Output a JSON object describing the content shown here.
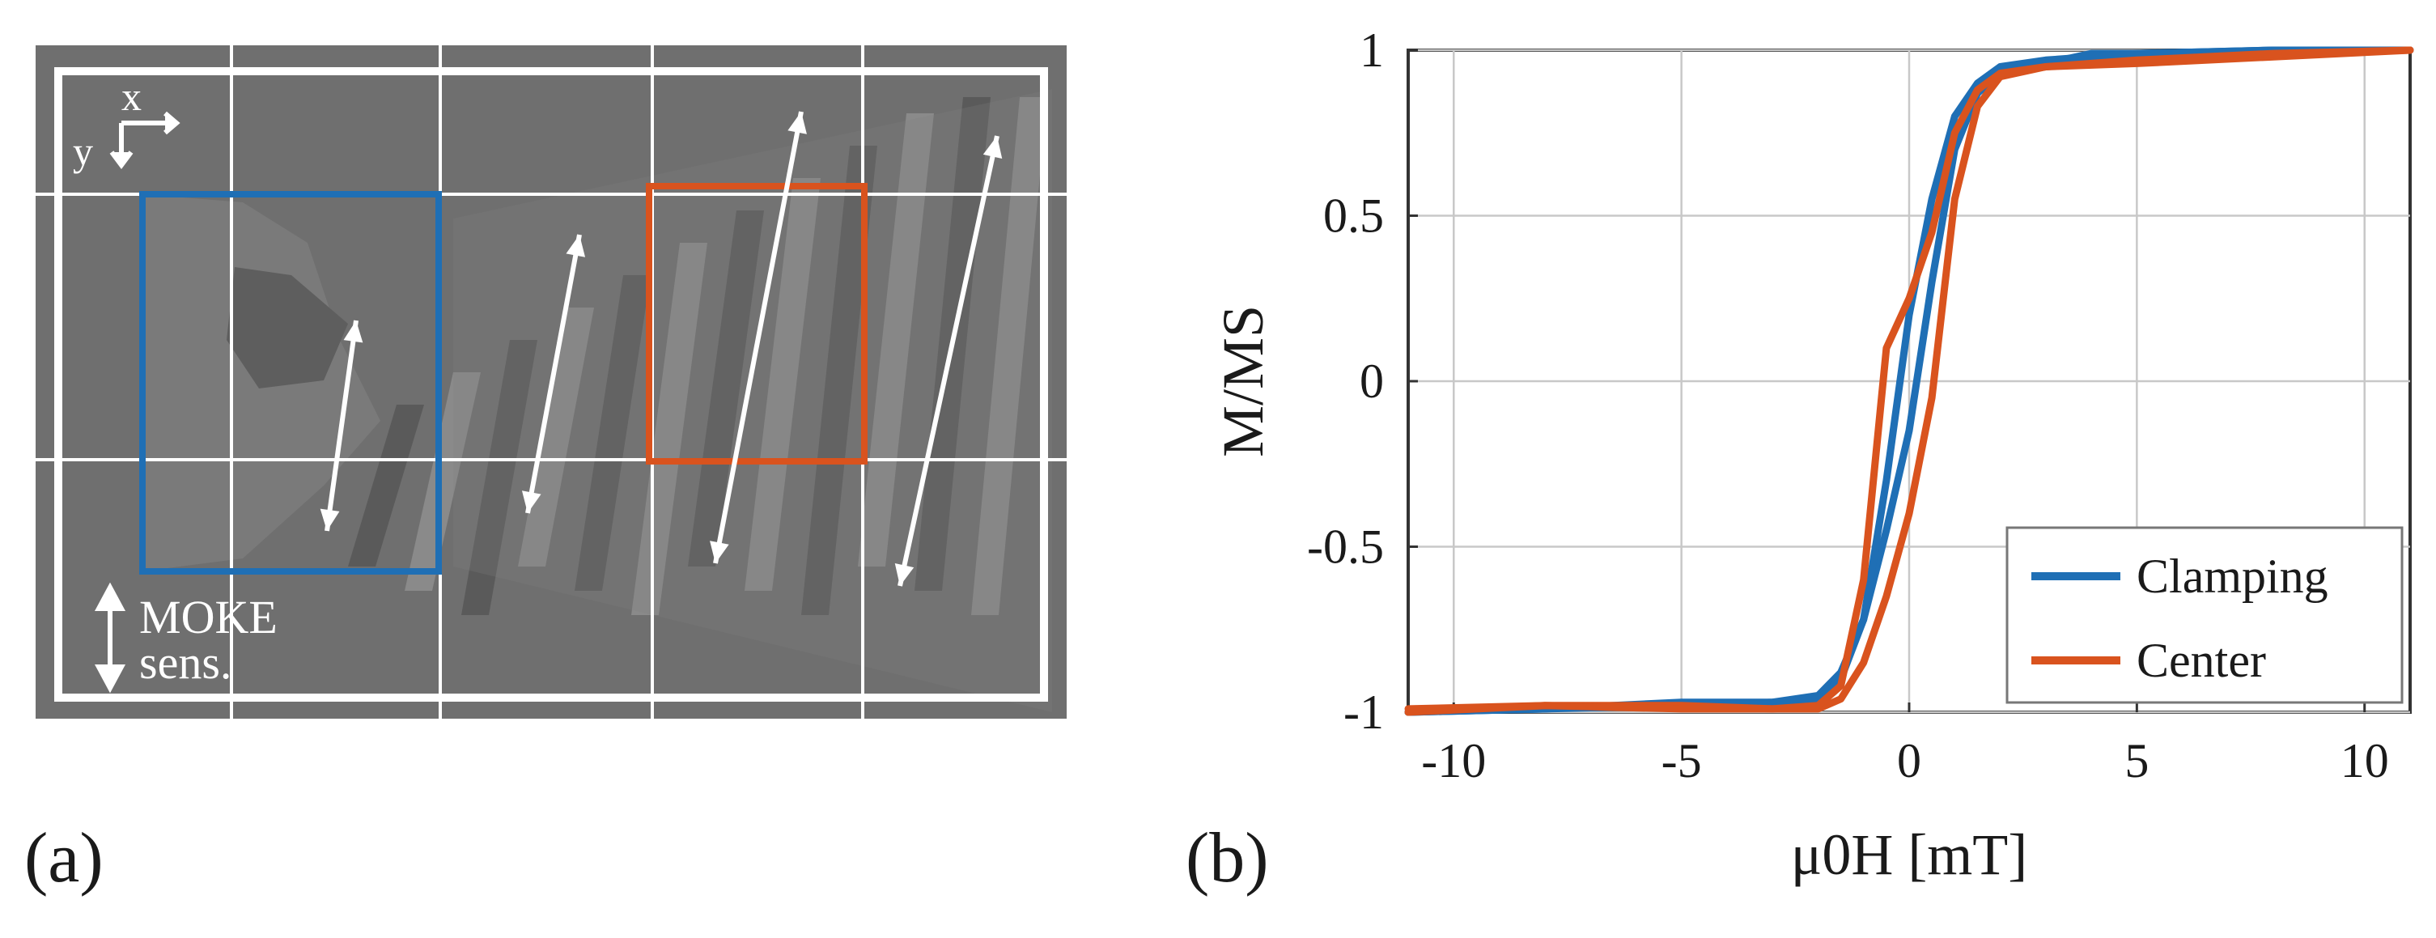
{
  "panels": {
    "a_label": "(a)",
    "b_label": "(b)"
  },
  "image_a": {
    "axis_x_label": "x",
    "axis_y_label": "y",
    "sensitivity_label_line1": "MOKE",
    "sensitivity_label_line2": "sens.",
    "colors": {
      "background": "#6f6f6f",
      "dark_domain": "#5a5a5a",
      "light_domain": "#8a8a8a",
      "grid": "#ffffff",
      "box_clamping": "#1f6fb5",
      "box_center": "#d9531e"
    }
  },
  "chart_data": {
    "type": "line",
    "xlabel": "μ0H [mT]",
    "ylabel": "M/MS",
    "xlim": [
      -11,
      11
    ],
    "ylim": [
      -1,
      1
    ],
    "xticks": [
      -10,
      -5,
      0,
      5,
      10
    ],
    "yticks": [
      -1,
      -0.5,
      0,
      0.5,
      1
    ],
    "xtick_labels": [
      "-10",
      "-5",
      "0",
      "5",
      "10"
    ],
    "ytick_labels": [
      "-1",
      "-0.5",
      "0",
      "0.5",
      "1"
    ],
    "grid": true,
    "legend_position": "bottom-right",
    "series": [
      {
        "name": "Clamping",
        "color": "#1f6fb5",
        "branches": [
          {
            "x": [
              -11,
              -8,
              -5,
              -3,
              -2,
              -1.5,
              -1,
              -0.5,
              0,
              0.5,
              1,
              1.5,
              2,
              3,
              4,
              5,
              8,
              11
            ],
            "y": [
              -1,
              -0.99,
              -0.97,
              -0.97,
              -0.95,
              -0.88,
              -0.72,
              -0.45,
              -0.15,
              0.3,
              0.7,
              0.87,
              0.93,
              0.96,
              0.99,
              0.99,
              1,
              1
            ]
          },
          {
            "x": [
              11,
              8,
              5,
              3,
              2,
              1.5,
              1,
              0.5,
              0,
              -0.5,
              -1,
              -1.5,
              -2,
              -3,
              -5,
              -8,
              -11
            ],
            "y": [
              1,
              1,
              0.99,
              0.97,
              0.95,
              0.9,
              0.8,
              0.55,
              0.2,
              -0.3,
              -0.72,
              -0.9,
              -0.96,
              -0.97,
              -0.98,
              -0.99,
              -1
            ]
          }
        ]
      },
      {
        "name": "Center",
        "color": "#d9531e",
        "branches": [
          {
            "x": [
              -11,
              -8,
              -5,
              -3,
              -2,
              -1.5,
              -1,
              -0.5,
              0,
              0.5,
              1,
              1.5,
              2,
              3,
              5,
              8,
              11
            ],
            "y": [
              -1,
              -0.98,
              -0.98,
              -0.99,
              -0.99,
              -0.96,
              -0.85,
              -0.65,
              -0.4,
              -0.05,
              0.55,
              0.83,
              0.92,
              0.95,
              0.96,
              0.98,
              1
            ]
          },
          {
            "x": [
              11,
              8,
              5,
              3,
              2,
              1.5,
              1,
              0.5,
              0,
              -0.5,
              -1,
              -1.5,
              -2,
              -3,
              -5,
              -8,
              -11
            ],
            "y": [
              1,
              0.99,
              0.97,
              0.95,
              0.93,
              0.88,
              0.75,
              0.45,
              0.25,
              0.1,
              -0.6,
              -0.92,
              -0.98,
              -0.99,
              -0.99,
              -0.98,
              -0.99
            ]
          }
        ]
      }
    ]
  }
}
